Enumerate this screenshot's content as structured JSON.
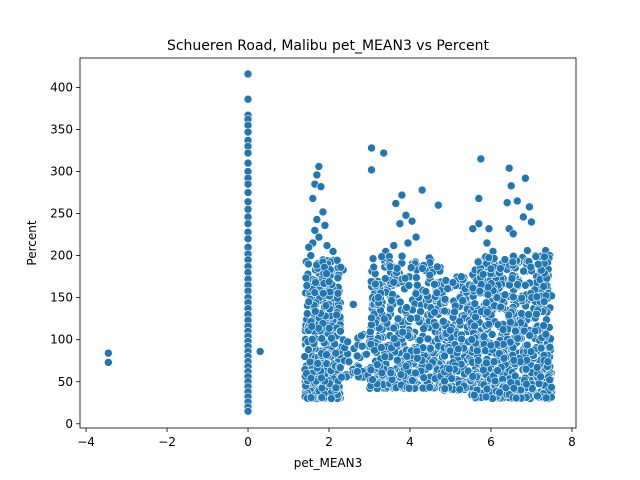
{
  "chart_data": {
    "type": "scatter",
    "title": "Schueren Road, Malibu pet_MEAN3 vs Percent",
    "xlabel": "pet_MEAN3",
    "ylabel": "Percent",
    "xlim": [
      -4.15,
      8.1
    ],
    "ylim": [
      -5,
      435
    ],
    "xticks": [
      -4,
      -2,
      0,
      2,
      4,
      6,
      8
    ],
    "yticks": [
      0,
      50,
      100,
      150,
      200,
      250,
      300,
      350,
      400
    ],
    "xtick_labels": [
      "−4",
      "−2",
      "0",
      "2",
      "4",
      "6",
      "8"
    ],
    "ytick_labels": [
      "0",
      "50",
      "100",
      "150",
      "200",
      "250",
      "300",
      "350",
      "400"
    ],
    "grid": false,
    "marker_color": "#1f77b4",
    "marker_edge_color": "#ffffff",
    "points": [
      [
        -3.45,
        84
      ],
      [
        -3.45,
        73
      ],
      [
        0.3,
        86
      ],
      [
        0,
        416
      ],
      [
        0,
        386
      ],
      [
        0,
        367
      ],
      [
        0,
        362
      ],
      [
        0,
        355
      ],
      [
        0,
        347
      ],
      [
        0,
        337
      ],
      [
        0,
        330
      ],
      [
        0,
        322
      ],
      [
        0,
        310
      ],
      [
        0,
        300
      ],
      [
        0,
        292
      ],
      [
        0,
        285
      ],
      [
        0,
        275
      ],
      [
        0,
        264
      ],
      [
        0,
        255
      ],
      [
        0,
        246
      ],
      [
        0,
        238
      ],
      [
        0,
        228
      ],
      [
        0,
        220
      ],
      [
        0,
        210
      ],
      [
        0,
        202
      ],
      [
        0,
        195
      ],
      [
        0,
        187
      ],
      [
        0,
        180
      ],
      [
        0,
        172
      ],
      [
        0,
        165
      ],
      [
        0,
        158
      ],
      [
        0,
        150
      ],
      [
        0,
        144
      ],
      [
        0,
        137
      ],
      [
        0,
        130
      ],
      [
        0,
        123
      ],
      [
        0,
        116
      ],
      [
        0,
        110
      ],
      [
        0,
        104
      ],
      [
        0,
        98
      ],
      [
        0,
        92
      ],
      [
        0,
        86
      ],
      [
        0,
        80
      ],
      [
        0,
        74
      ],
      [
        0,
        68
      ],
      [
        0,
        62
      ],
      [
        0,
        56
      ],
      [
        0,
        50
      ],
      [
        0,
        44
      ],
      [
        0,
        38
      ],
      [
        0,
        32
      ],
      [
        0,
        26
      ],
      [
        0,
        20
      ],
      [
        0,
        15
      ],
      [
        1.75,
        306
      ],
      [
        1.7,
        296
      ],
      [
        1.65,
        285
      ],
      [
        1.8,
        282
      ],
      [
        1.6,
        268
      ],
      [
        1.85,
        252
      ],
      [
        1.7,
        243
      ],
      [
        1.9,
        236
      ],
      [
        1.65,
        230
      ],
      [
        1.75,
        222
      ],
      [
        1.6,
        215
      ],
      [
        1.5,
        210
      ],
      [
        1.95,
        212
      ],
      [
        1.55,
        200
      ],
      [
        1.85,
        195
      ],
      [
        2.1,
        205
      ],
      [
        3.05,
        328
      ],
      [
        3.35,
        322
      ],
      [
        3.05,
        302
      ],
      [
        5.75,
        315
      ],
      [
        6.45,
        304
      ],
      [
        6.85,
        292
      ],
      [
        6.5,
        283
      ],
      [
        3.8,
        272
      ],
      [
        4.3,
        278
      ],
      [
        4.7,
        260
      ],
      [
        3.65,
        262
      ],
      [
        5.7,
        268
      ],
      [
        6.65,
        265
      ],
      [
        6.4,
        263
      ],
      [
        6.95,
        258
      ],
      [
        6.8,
        246
      ],
      [
        7.0,
        240
      ],
      [
        3.9,
        248
      ],
      [
        4.05,
        241
      ],
      [
        3.75,
        238
      ],
      [
        6.45,
        232
      ],
      [
        6.55,
        226
      ],
      [
        4.15,
        222
      ],
      [
        3.95,
        215
      ],
      [
        5.55,
        232
      ],
      [
        5.7,
        238
      ],
      [
        5.95,
        232
      ],
      [
        5.9,
        215
      ],
      [
        3.6,
        212
      ],
      [
        7.1,
        200
      ],
      [
        7.35,
        206
      ],
      [
        7.45,
        200
      ],
      [
        6.05,
        205
      ],
      [
        6.9,
        206
      ],
      [
        3.4,
        205
      ],
      [
        3.3,
        198
      ],
      [
        3.5,
        192
      ],
      [
        2.35,
        183
      ],
      [
        2.2,
        178
      ],
      [
        2.6,
        142
      ],
      [
        2.25,
        158
      ]
    ],
    "clusters": [
      {
        "xmin": 1.4,
        "xmax": 2.3,
        "ymin": 30,
        "ymax": 195,
        "count": 420
      },
      {
        "xmin": 2.3,
        "xmax": 3.0,
        "ymin": 55,
        "ymax": 110,
        "count": 40
      },
      {
        "xmin": 3.0,
        "xmax": 4.8,
        "ymin": 42,
        "ymax": 200,
        "count": 520
      },
      {
        "xmin": 4.8,
        "xmax": 5.5,
        "ymin": 40,
        "ymax": 175,
        "count": 180
      },
      {
        "xmin": 5.5,
        "xmax": 7.5,
        "ymin": 30,
        "ymax": 200,
        "count": 700
      }
    ]
  }
}
